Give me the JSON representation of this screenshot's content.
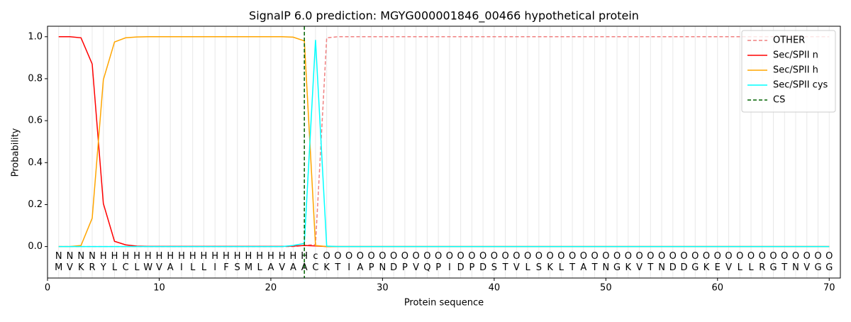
{
  "chart_data": {
    "type": "line",
    "title": "SignalP 6.0 prediction: MGYG000001846_00466 hypothetical protein",
    "xlabel": "Protein sequence",
    "ylabel": "Probability",
    "xlim": [
      0,
      71
    ],
    "ylim": [
      -0.15,
      1.05
    ],
    "xticks": [
      0,
      10,
      20,
      30,
      40,
      50,
      60,
      70
    ],
    "yticks": [
      {
        "value": 0,
        "label": "0.0"
      },
      {
        "value": 0.2,
        "label": "0.2"
      },
      {
        "value": 0.4,
        "label": "0.4"
      },
      {
        "value": 0.6,
        "label": "0.6"
      },
      {
        "value": 0.8,
        "label": "0.8"
      },
      {
        "value": 1,
        "label": "1.0"
      }
    ],
    "legend": "upper right",
    "x": [
      1,
      2,
      3,
      4,
      5,
      6,
      7,
      8,
      9,
      10,
      11,
      12,
      13,
      14,
      15,
      16,
      17,
      18,
      19,
      20,
      21,
      22,
      23,
      24,
      25,
      26,
      27,
      28,
      29,
      30,
      31,
      32,
      33,
      34,
      35,
      36,
      37,
      38,
      39,
      40,
      41,
      42,
      43,
      44,
      45,
      46,
      47,
      48,
      49,
      50,
      51,
      52,
      53,
      54,
      55,
      56,
      57,
      58,
      59,
      60,
      61,
      62,
      63,
      64,
      65,
      66,
      67,
      68,
      69,
      70
    ],
    "sequence": [
      "M",
      "V",
      "K",
      "R",
      "Y",
      "L",
      "C",
      "L",
      "W",
      "V",
      "A",
      "I",
      "L",
      "L",
      "I",
      "F",
      "S",
      "M",
      "L",
      "A",
      "V",
      "A",
      "A",
      "C",
      "K",
      "T",
      "I",
      "A",
      "P",
      "N",
      "D",
      "P",
      "V",
      "Q",
      "P",
      "I",
      "D",
      "P",
      "D",
      "S",
      "T",
      "V",
      "L",
      "S",
      "K",
      "L",
      "T",
      "A",
      "T",
      "N",
      "G",
      "K",
      "V",
      "T",
      "N",
      "D",
      "D",
      "G",
      "K",
      "E",
      "V",
      "L",
      "L",
      "R",
      "G",
      "T",
      "N",
      "V",
      "G",
      "G"
    ],
    "labels": [
      "N",
      "N",
      "N",
      "N",
      "H",
      "H",
      "H",
      "H",
      "H",
      "H",
      "H",
      "H",
      "H",
      "H",
      "H",
      "H",
      "H",
      "H",
      "H",
      "H",
      "H",
      "H",
      "H",
      "c",
      "O",
      "O",
      "O",
      "O",
      "O",
      "O",
      "O",
      "O",
      "O",
      "O",
      "O",
      "O",
      "O",
      "O",
      "O",
      "O",
      "O",
      "O",
      "O",
      "O",
      "O",
      "O",
      "O",
      "O",
      "O",
      "O",
      "O",
      "O",
      "O",
      "O",
      "O",
      "O",
      "O",
      "O",
      "O",
      "O",
      "O",
      "O",
      "O",
      "O",
      "O",
      "O",
      "O",
      "O",
      "O",
      "O"
    ],
    "label_colors": {
      "N": "#ff0000",
      "H": "#ffa500",
      "c": "#00d8d8",
      "O": "#808080"
    },
    "series": [
      {
        "name": "OTHER",
        "color": "#f08080",
        "dashed": true,
        "values": [
          0,
          0,
          0,
          0,
          0,
          0,
          0,
          0,
          0,
          0,
          0,
          0,
          0,
          0,
          0,
          0,
          0,
          0,
          0,
          0,
          0,
          0,
          0.005,
          0.01,
          0.995,
          1,
          1,
          1,
          1,
          1,
          1,
          1,
          1,
          1,
          1,
          1,
          1,
          1,
          1,
          1,
          1,
          1,
          1,
          1,
          1,
          1,
          1,
          1,
          1,
          1,
          1,
          1,
          1,
          1,
          1,
          1,
          1,
          1,
          1,
          1,
          1,
          1,
          1,
          1,
          1,
          1,
          1,
          1,
          1,
          1
        ]
      },
      {
        "name": "Sec/SPII n",
        "color": "#ff0000",
        "values": [
          1,
          1,
          0.995,
          0.87,
          0.205,
          0.025,
          0.008,
          0.002,
          0.001,
          0.001,
          0.001,
          0.001,
          0.001,
          0.001,
          0.001,
          0.001,
          0.001,
          0.001,
          0.001,
          0.001,
          0.001,
          0.002,
          0.005,
          0.003,
          0,
          0,
          0,
          0,
          0,
          0,
          0,
          0,
          0,
          0,
          0,
          0,
          0,
          0,
          0,
          0,
          0,
          0,
          0,
          0,
          0,
          0,
          0,
          0,
          0,
          0,
          0,
          0,
          0,
          0,
          0,
          0,
          0,
          0,
          0,
          0,
          0,
          0,
          0,
          0,
          0,
          0,
          0,
          0,
          0,
          0
        ]
      },
      {
        "name": "Sec/SPII h",
        "color": "#ffa500",
        "values": [
          0,
          0,
          0.005,
          0.135,
          0.795,
          0.975,
          0.995,
          0.999,
          1,
          1,
          1,
          1,
          1,
          1,
          1,
          1,
          1,
          1,
          1,
          1,
          1,
          0.998,
          0.98,
          0.005,
          0,
          0,
          0,
          0,
          0,
          0,
          0,
          0,
          0,
          0,
          0,
          0,
          0,
          0,
          0,
          0,
          0,
          0,
          0,
          0,
          0,
          0,
          0,
          0,
          0,
          0,
          0,
          0,
          0,
          0,
          0,
          0,
          0,
          0,
          0,
          0,
          0,
          0,
          0,
          0,
          0,
          0,
          0,
          0,
          0,
          0
        ]
      },
      {
        "name": "Sec/SPII cys",
        "color": "#00ffff",
        "values": [
          0,
          0,
          0,
          0,
          0,
          0,
          0,
          0,
          0,
          0,
          0,
          0,
          0,
          0,
          0,
          0,
          0,
          0,
          0,
          0,
          0,
          0.005,
          0.015,
          0.985,
          0.002,
          0,
          0,
          0,
          0,
          0,
          0,
          0,
          0,
          0,
          0,
          0,
          0,
          0,
          0,
          0,
          0,
          0,
          0,
          0,
          0,
          0,
          0,
          0,
          0,
          0,
          0,
          0,
          0,
          0,
          0,
          0,
          0,
          0,
          0,
          0,
          0,
          0,
          0,
          0,
          0,
          0,
          0,
          0,
          0,
          0
        ]
      }
    ],
    "cs": {
      "name": "CS",
      "position": 23,
      "color": "#006400"
    }
  }
}
